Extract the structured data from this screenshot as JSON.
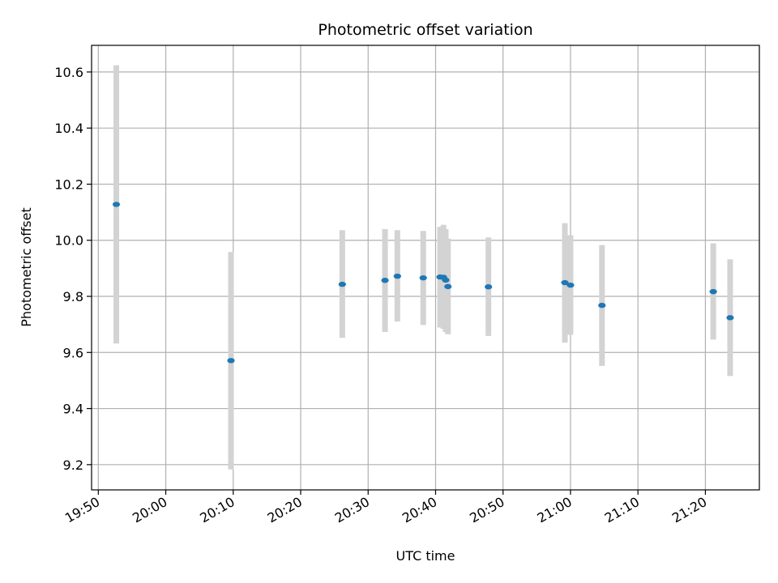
{
  "chart_data": {
    "type": "scatter",
    "title": "Photometric offset variation",
    "xlabel": "UTC time",
    "ylabel": "Photometric offset",
    "x_axis": "time",
    "xlim": [
      "19:49",
      "21:28"
    ],
    "ylim": [
      9.11,
      10.695
    ],
    "xticks": [
      "19:50",
      "20:00",
      "20:10",
      "20:20",
      "20:30",
      "20:40",
      "20:50",
      "21:00",
      "21:10",
      "21:20"
    ],
    "yticks": [
      9.2,
      9.4,
      9.6,
      9.8,
      10.0,
      10.2,
      10.4,
      10.6
    ],
    "ytick_labels": [
      "9.2",
      "9.4",
      "9.6",
      "9.8",
      "10.0",
      "10.2",
      "10.4",
      "10.6"
    ],
    "grid": true,
    "colors": {
      "point": "#1f77b4",
      "errorbar": "#d3d3d3",
      "grid": "#b0b0b0"
    },
    "points": [
      {
        "time": "19:52:40",
        "y": 10.128,
        "ylow": 9.632,
        "yhigh": 10.624
      },
      {
        "time": "20:09:40",
        "y": 9.571,
        "ylow": 9.183,
        "yhigh": 9.958
      },
      {
        "time": "20:26:10",
        "y": 9.843,
        "ylow": 9.652,
        "yhigh": 10.036
      },
      {
        "time": "20:32:30",
        "y": 9.857,
        "ylow": 9.673,
        "yhigh": 10.04
      },
      {
        "time": "20:34:20",
        "y": 9.872,
        "ylow": 9.71,
        "yhigh": 10.036
      },
      {
        "time": "20:38:10",
        "y": 9.866,
        "ylow": 9.698,
        "yhigh": 10.033
      },
      {
        "time": "20:40:40",
        "y": 9.869,
        "ylow": 9.689,
        "yhigh": 10.048
      },
      {
        "time": "20:41:10",
        "y": 9.868,
        "ylow": 9.684,
        "yhigh": 10.055
      },
      {
        "time": "20:41:30",
        "y": 9.858,
        "ylow": 9.673,
        "yhigh": 10.04
      },
      {
        "time": "20:41:50",
        "y": 9.835,
        "ylow": 9.665,
        "yhigh": 10.006
      },
      {
        "time": "20:47:50",
        "y": 9.834,
        "ylow": 9.659,
        "yhigh": 10.01
      },
      {
        "time": "20:59:10",
        "y": 9.849,
        "ylow": 9.635,
        "yhigh": 10.061
      },
      {
        "time": "21:00:00",
        "y": 9.84,
        "ylow": 9.663,
        "yhigh": 10.018
      },
      {
        "time": "21:04:40",
        "y": 9.768,
        "ylow": 9.552,
        "yhigh": 9.983
      },
      {
        "time": "21:21:10",
        "y": 9.817,
        "ylow": 9.646,
        "yhigh": 9.989
      },
      {
        "time": "21:23:40",
        "y": 9.724,
        "ylow": 9.516,
        "yhigh": 9.932
      }
    ]
  }
}
